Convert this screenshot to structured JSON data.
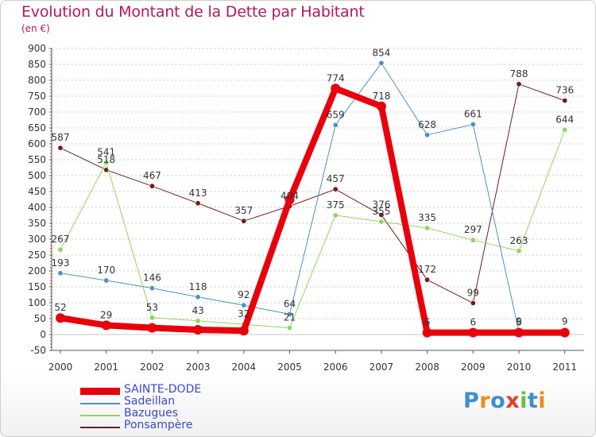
{
  "title": "Evolution du Montant de la Dette par Habitant",
  "subtitle": "(en €)",
  "logo": {
    "text": "Proxiti",
    "colors": [
      "#3a8fd0",
      "#f08a1c",
      "#3a8fd0",
      "#e53d2a",
      "#6cbf3c",
      "#3a8fd0",
      "#f08a1c"
    ]
  },
  "chart_data": {
    "type": "line",
    "title": "Evolution du Montant de la Dette par Habitant",
    "subtitle": "(en €)",
    "x": [
      "2000",
      "2001",
      "2002",
      "2003",
      "2004",
      "2005",
      "2006",
      "2007",
      "2008",
      "2009",
      "2010",
      "2011"
    ],
    "ylim": [
      -50,
      900
    ],
    "yticks": [
      -50,
      0,
      50,
      100,
      150,
      200,
      250,
      300,
      350,
      400,
      450,
      500,
      550,
      600,
      650,
      700,
      750,
      800,
      850,
      900
    ],
    "grid": "horizontal dashed",
    "legend_position": "bottom-left",
    "series": [
      {
        "name": "SAINTE-DODE",
        "color": "#e8000c",
        "width": 8,
        "values": [
          52,
          29,
          21,
          15,
          12,
          424,
          774,
          718,
          6,
          6,
          6,
          6
        ],
        "labels": [
          "52",
          "29",
          "",
          "",
          "",
          "",
          "774",
          "718",
          "6",
          "6",
          "6",
          ""
        ]
      },
      {
        "name": "Sadeillan",
        "color": "#4f90c8",
        "width": 1,
        "values": [
          193,
          170,
          146,
          118,
          92,
          64,
          659,
          854,
          628,
          661,
          9,
          9
        ],
        "labels": [
          "193",
          "170",
          "146",
          "118",
          "92",
          "64",
          "659",
          "854",
          "628",
          "661",
          "9",
          "9"
        ]
      },
      {
        "name": "Bazugues",
        "color": "#8fd65c",
        "width": 1,
        "values": [
          267,
          541,
          53,
          43,
          32,
          21,
          375,
          355,
          335,
          297,
          263,
          644
        ],
        "labels": [
          "267",
          "541",
          "53",
          "43",
          "32",
          "21",
          "375",
          "355",
          "335",
          "297",
          "263",
          "644"
        ]
      },
      {
        "name": "Ponsampère",
        "color": "#6f1d1d",
        "width": 1,
        "values": [
          587,
          518,
          467,
          413,
          357,
          404,
          457,
          376,
          172,
          99,
          788,
          736
        ],
        "labels": [
          "587",
          "518",
          "467",
          "413",
          "357",
          "404",
          "457",
          "376",
          "172",
          "99",
          "788",
          "736"
        ]
      }
    ]
  }
}
